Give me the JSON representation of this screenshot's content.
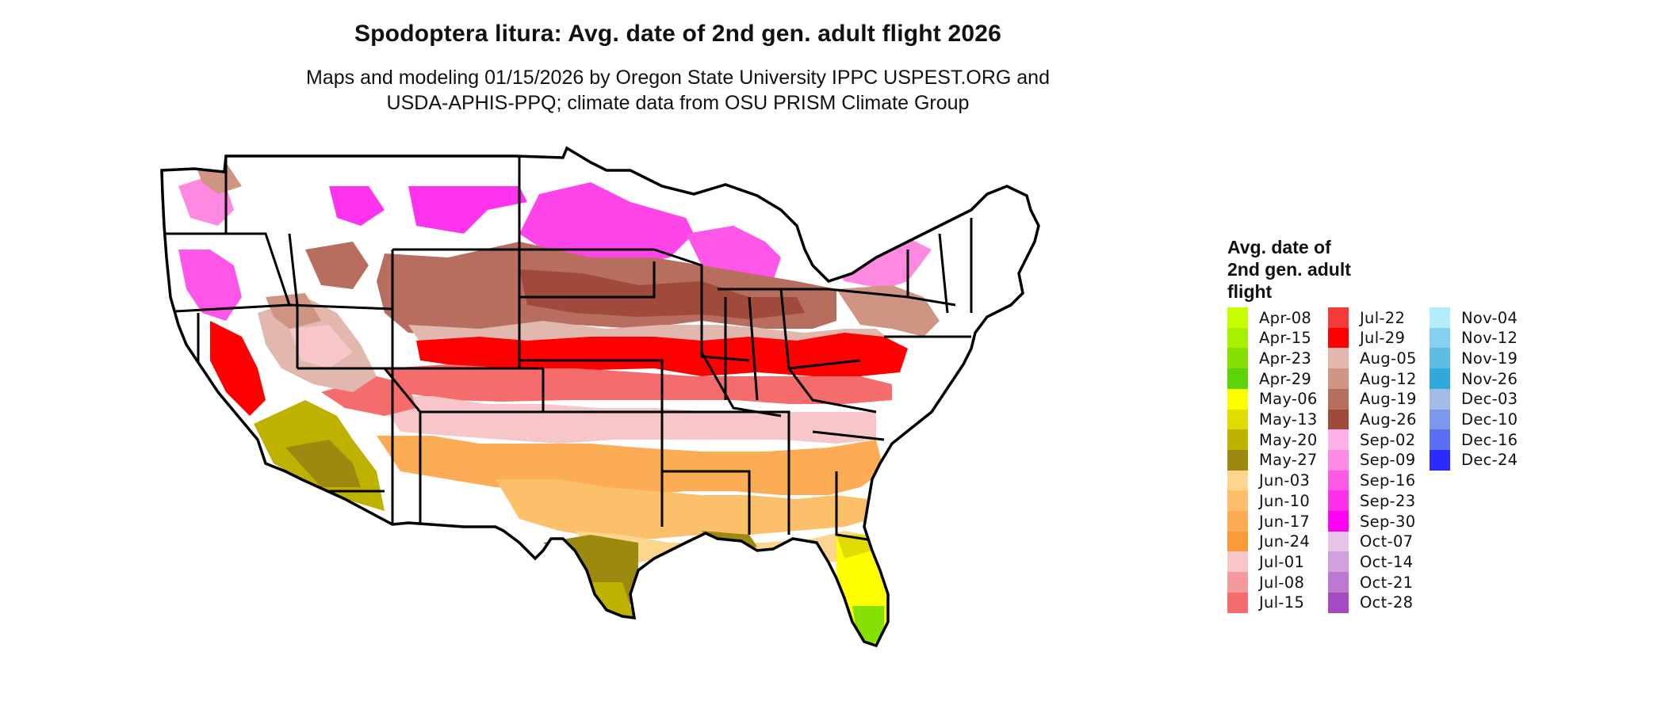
{
  "title": "Spodoptera litura: Avg. date of 2nd gen. adult flight 2026",
  "subtitle_line1": "Maps and modeling 01/15/2026 by Oregon State University IPPC USPEST.ORG and",
  "subtitle_line2": "USDA-APHIS-PPQ; climate data from OSU PRISM Climate Group",
  "legend": {
    "title_lines": [
      "Avg. date of",
      "2nd gen. adult",
      "flight"
    ],
    "columns": [
      [
        {
          "label": "Apr-08",
          "color": "#c8ff00"
        },
        {
          "label": "Apr-15",
          "color": "#a6f000"
        },
        {
          "label": "Apr-23",
          "color": "#84e000"
        },
        {
          "label": "Apr-29",
          "color": "#5cd40a"
        },
        {
          "label": "May-06",
          "color": "#ffff00"
        },
        {
          "label": "May-13",
          "color": "#e2db00"
        },
        {
          "label": "May-20",
          "color": "#bfb100"
        },
        {
          "label": "May-27",
          "color": "#9c8a10"
        },
        {
          "label": "Jun-03",
          "color": "#fcd58e"
        },
        {
          "label": "Jun-10",
          "color": "#fcbf6a"
        },
        {
          "label": "Jun-17",
          "color": "#fcac55"
        },
        {
          "label": "Jun-24",
          "color": "#fb9a3a"
        },
        {
          "label": "Jul-01",
          "color": "#f7c6c8"
        },
        {
          "label": "Jul-08",
          "color": "#f59a9c"
        },
        {
          "label": "Jul-15",
          "color": "#f46c6c"
        }
      ],
      [
        {
          "label": "Jul-22",
          "color": "#f53a3a"
        },
        {
          "label": "Jul-29",
          "color": "#ff0000"
        },
        {
          "label": "Aug-05",
          "color": "#e2b8ae"
        },
        {
          "label": "Aug-12",
          "color": "#cf9482"
        },
        {
          "label": "Aug-19",
          "color": "#b86e5e"
        },
        {
          "label": "Aug-26",
          "color": "#a04a3c"
        },
        {
          "label": "Sep-02",
          "color": "#ffb0e6"
        },
        {
          "label": "Sep-09",
          "color": "#ff8ae4"
        },
        {
          "label": "Sep-16",
          "color": "#ff5ae6"
        },
        {
          "label": "Sep-23",
          "color": "#ff30ec"
        },
        {
          "label": "Sep-30",
          "color": "#ff00f4"
        },
        {
          "label": "Oct-07",
          "color": "#e6c4e8"
        },
        {
          "label": "Oct-14",
          "color": "#d2a0dc"
        },
        {
          "label": "Oct-21",
          "color": "#bd78d2"
        },
        {
          "label": "Oct-28",
          "color": "#a64ac4"
        }
      ],
      [
        {
          "label": "Nov-04",
          "color": "#b4ecfc"
        },
        {
          "label": "Nov-12",
          "color": "#86d0f0"
        },
        {
          "label": "Nov-19",
          "color": "#5ebce4"
        },
        {
          "label": "Nov-26",
          "color": "#30a8dc"
        },
        {
          "label": "Dec-03",
          "color": "#a2bce6"
        },
        {
          "label": "Dec-10",
          "color": "#7c98ec"
        },
        {
          "label": "Dec-16",
          "color": "#5a6ef2"
        },
        {
          "label": "Dec-24",
          "color": "#2b2bfc"
        }
      ]
    ]
  }
}
